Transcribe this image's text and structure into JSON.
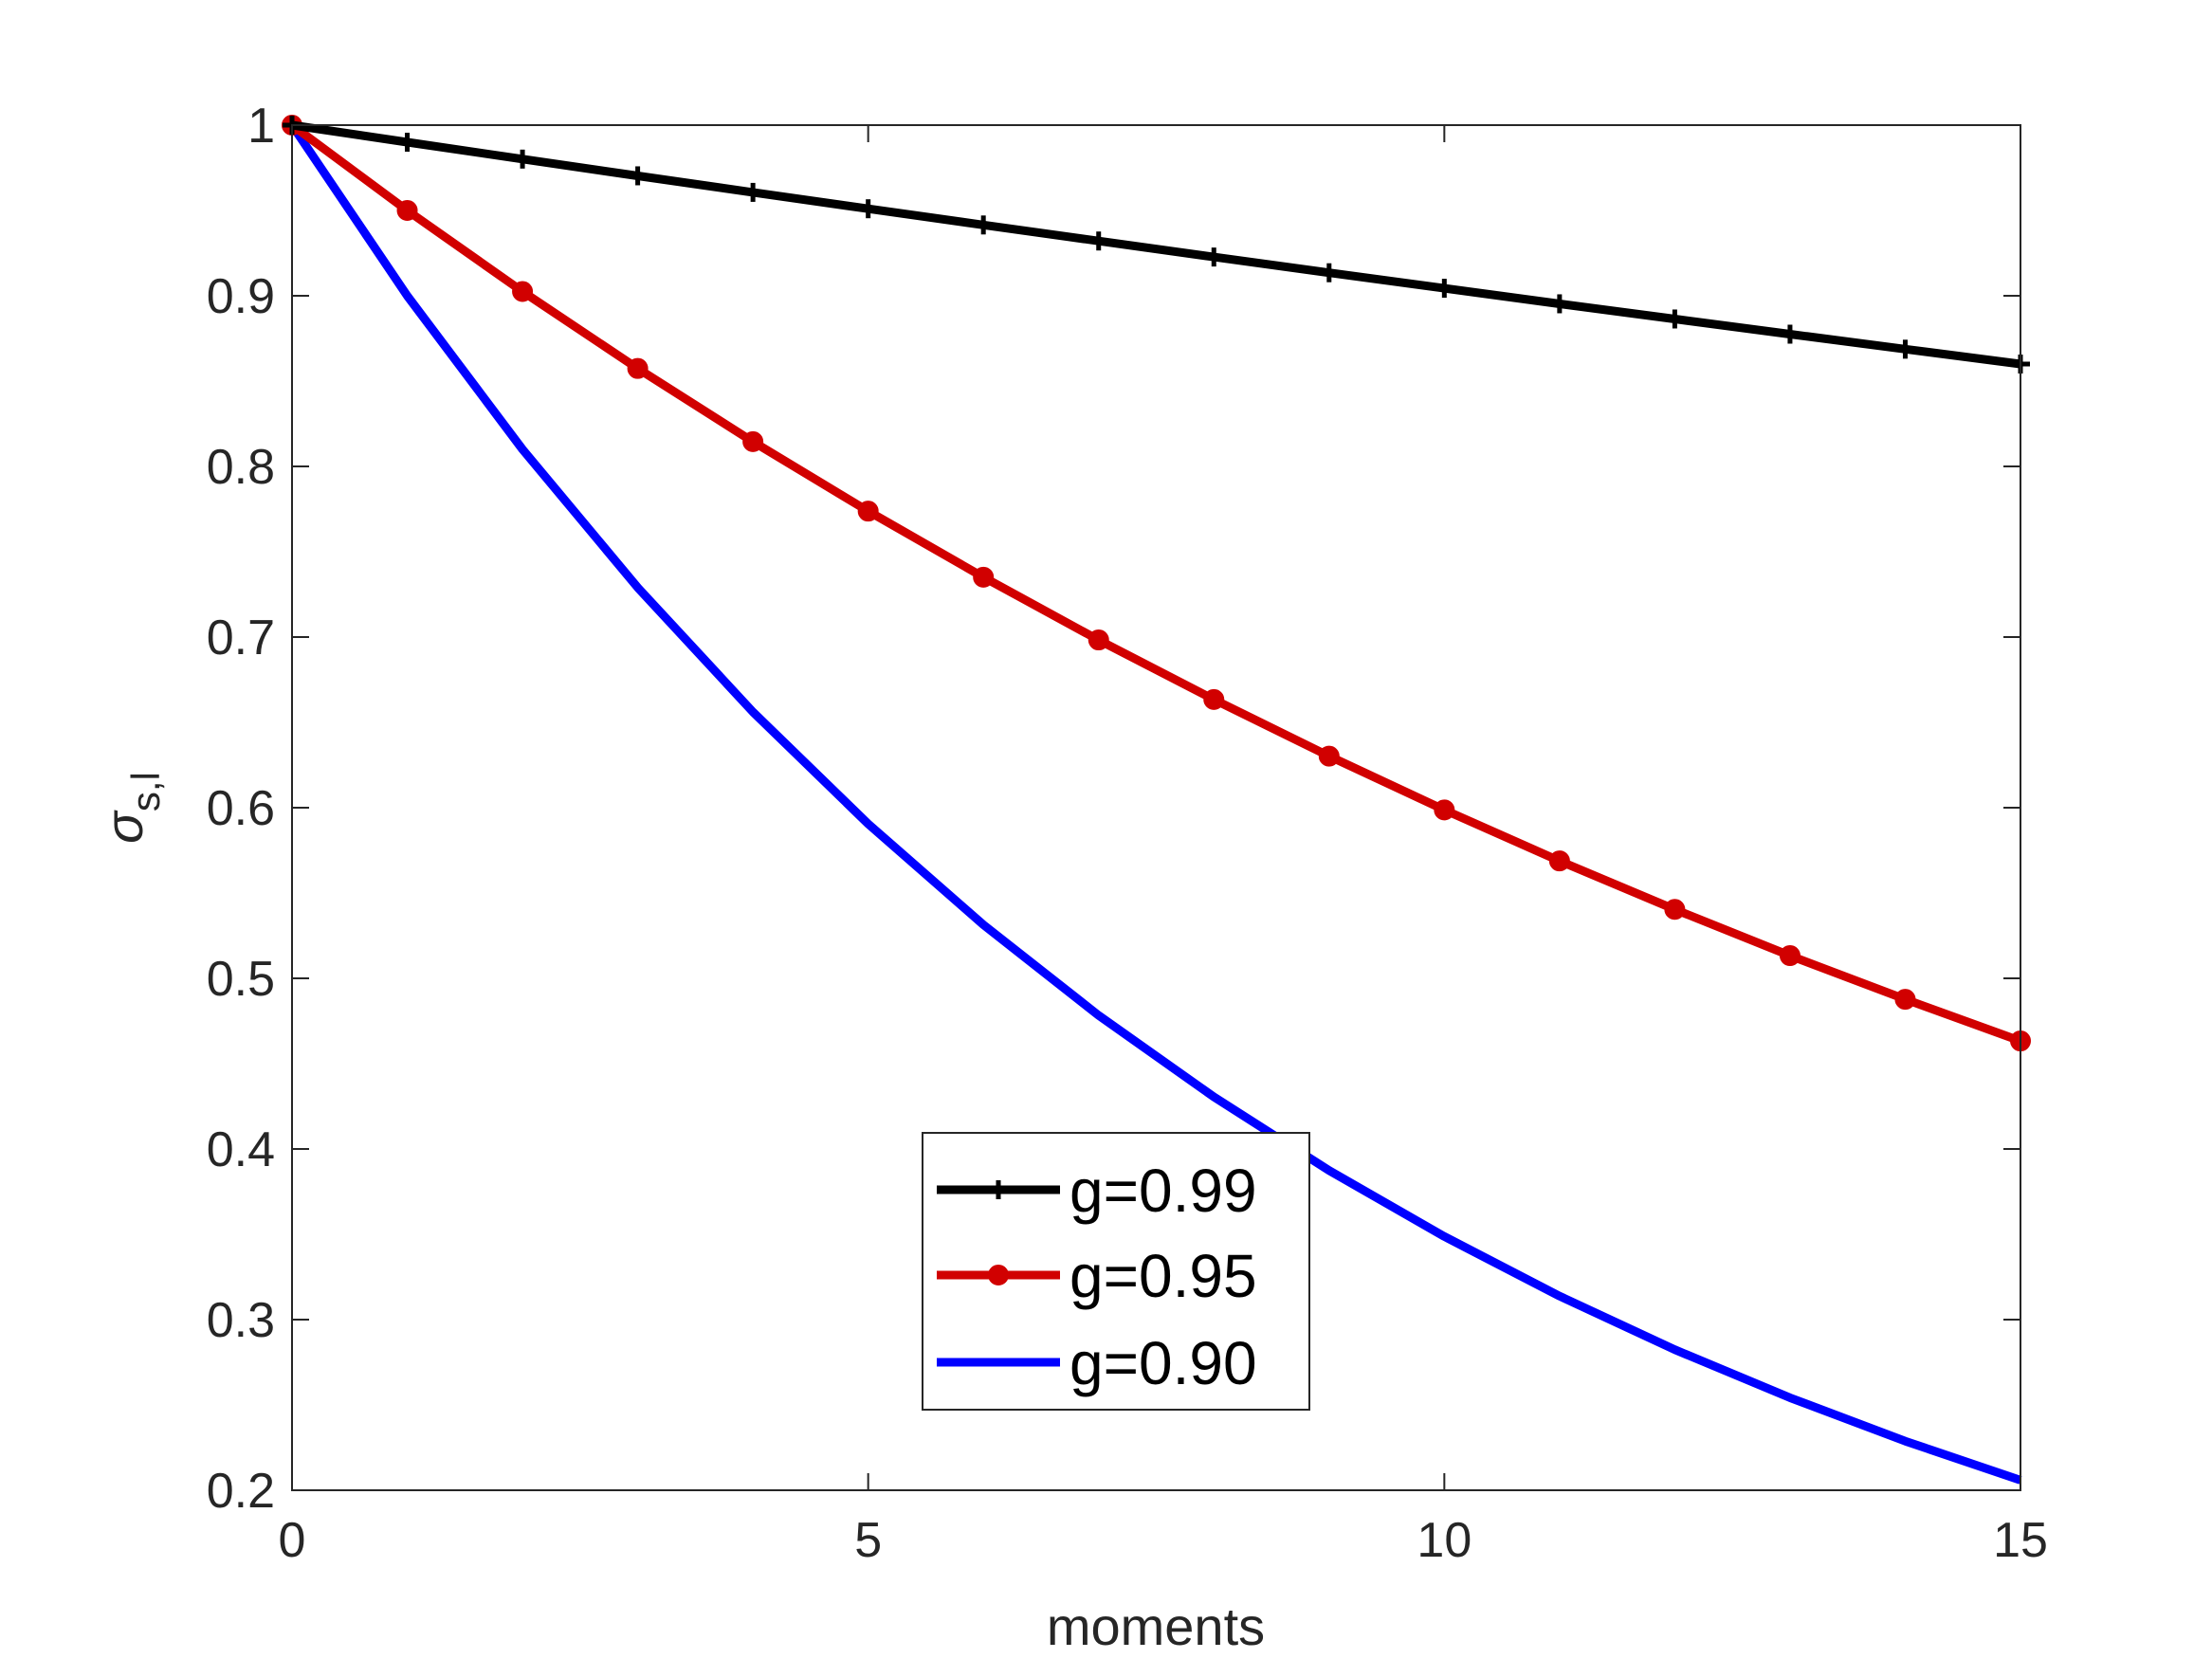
{
  "chart_data": {
    "type": "line",
    "xlabel": "moments",
    "ylabel": {
      "symbol": "σ",
      "subscript": "s,l"
    },
    "xlim": [
      0,
      15
    ],
    "ylim": [
      0.2,
      1.0
    ],
    "xticks": [
      "0",
      "5",
      "10",
      "15"
    ],
    "yticks": [
      "0.2",
      "0.3",
      "0.4",
      "0.5",
      "0.6",
      "0.7",
      "0.8",
      "0.9",
      "1"
    ],
    "grid": false,
    "box": true,
    "legend_position": "bottom-center",
    "series": [
      {
        "name": "g=0.99",
        "color": "#000000",
        "marker": "plus",
        "x": [
          0,
          1,
          2,
          3,
          4,
          5,
          6,
          7,
          8,
          9,
          10,
          11,
          12,
          13,
          14,
          15
        ],
        "values": [
          1.0,
          0.99,
          0.9801,
          0.9703,
          0.9606,
          0.951,
          0.9415,
          0.9321,
          0.9227,
          0.9135,
          0.9044,
          0.8953,
          0.8864,
          0.8775,
          0.8687,
          0.86
        ]
      },
      {
        "name": "g=0.95",
        "color": "#d10000",
        "marker": "circle",
        "x": [
          0,
          1,
          2,
          3,
          4,
          5,
          6,
          7,
          8,
          9,
          10,
          11,
          12,
          13,
          14,
          15
        ],
        "values": [
          1.0,
          0.95,
          0.9025,
          0.8574,
          0.8145,
          0.7738,
          0.7351,
          0.6983,
          0.6634,
          0.6302,
          0.5987,
          0.5688,
          0.5404,
          0.5133,
          0.4877,
          0.4633
        ]
      },
      {
        "name": "g=0.90",
        "color": "#0000ff",
        "marker": "none",
        "x": [
          0,
          1,
          2,
          3,
          4,
          5,
          6,
          7,
          8,
          9,
          10,
          11,
          12,
          13,
          14,
          15
        ],
        "values": [
          1.0,
          0.9,
          0.81,
          0.729,
          0.6561,
          0.5905,
          0.5314,
          0.4783,
          0.4305,
          0.3874,
          0.3487,
          0.3138,
          0.2824,
          0.2542,
          0.2288,
          0.2059
        ]
      }
    ]
  }
}
